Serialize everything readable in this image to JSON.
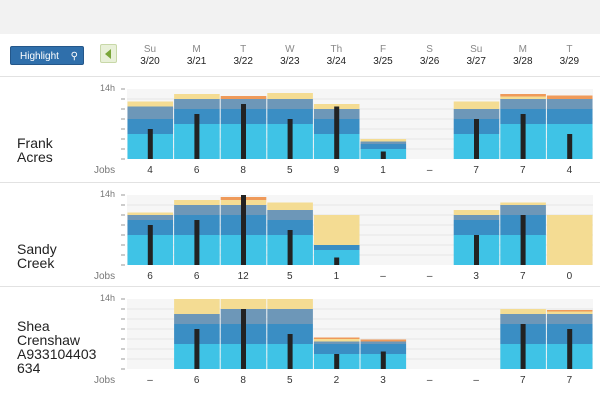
{
  "toolbar": {
    "highlight_label": "Highlight",
    "search_icon": "search-icon",
    "prev_icon": "chevron-left-icon"
  },
  "days": [
    {
      "dow": "Su",
      "date": "3/20"
    },
    {
      "dow": "M",
      "date": "3/21"
    },
    {
      "dow": "T",
      "date": "3/22"
    },
    {
      "dow": "W",
      "date": "3/23"
    },
    {
      "dow": "Th",
      "date": "3/24"
    },
    {
      "dow": "F",
      "date": "3/25"
    },
    {
      "dow": "S",
      "date": "3/26"
    },
    {
      "dow": "Su",
      "date": "3/27"
    },
    {
      "dow": "M",
      "date": "3/28"
    },
    {
      "dow": "T",
      "date": "3/29"
    }
  ],
  "y_max_label": "14h",
  "jobs_label": "Jobs",
  "colors": {
    "cyan": "#3fc3e6",
    "blue": "#3a8ec4",
    "slate": "#6d97b8",
    "yellow": "#f4dc93",
    "orange": "#ef9a5a",
    "bar": "#222222"
  },
  "panels": [
    {
      "name": "Frank\nAcres",
      "jobs": [
        "4",
        "6",
        "8",
        "5",
        "9",
        "1",
        "–",
        "7",
        "7",
        "4"
      ],
      "stacks": [
        {
          "cyan": 5,
          "blue": 3,
          "slate": 2.5,
          "yellow": 1,
          "orange": 0,
          "bar": 6
        },
        {
          "cyan": 7,
          "blue": 3,
          "slate": 2,
          "yellow": 1,
          "orange": 0,
          "bar": 9
        },
        {
          "cyan": 7,
          "blue": 3,
          "slate": 2,
          "yellow": 0,
          "orange": 0.6,
          "bar": 11
        },
        {
          "cyan": 7,
          "blue": 3,
          "slate": 2,
          "yellow": 1.2,
          "orange": 0,
          "bar": 8
        },
        {
          "cyan": 5,
          "blue": 3,
          "slate": 2,
          "yellow": 1,
          "orange": 0,
          "bar": 10.5
        },
        {
          "cyan": 2,
          "blue": 1,
          "slate": 0.5,
          "yellow": 0.5,
          "orange": 0,
          "bar": 1.5
        },
        null,
        {
          "cyan": 5,
          "blue": 3,
          "slate": 2,
          "yellow": 1.5,
          "orange": 0,
          "bar": 8
        },
        {
          "cyan": 7,
          "blue": 3,
          "slate": 2,
          "yellow": 0.5,
          "orange": 0.5,
          "bar": 9
        },
        {
          "cyan": 7,
          "blue": 3,
          "slate": 2,
          "yellow": 0,
          "orange": 0.7,
          "bar": 5
        }
      ]
    },
    {
      "name": "Sandy\nCreek",
      "jobs": [
        "6",
        "6",
        "12",
        "5",
        "1",
        "–",
        "–",
        "3",
        "7",
        "0"
      ],
      "stacks": [
        {
          "cyan": 6,
          "blue": 3,
          "slate": 1,
          "yellow": 0.5,
          "orange": 0,
          "bar": 8
        },
        {
          "cyan": 6,
          "blue": 4,
          "slate": 2,
          "yellow": 1,
          "orange": 0,
          "bar": 9
        },
        {
          "cyan": 6,
          "blue": 4,
          "slate": 2,
          "yellow": 1,
          "orange": 0.6,
          "bar": 14
        },
        {
          "cyan": 6,
          "blue": 3,
          "slate": 2,
          "yellow": 1.5,
          "orange": 0,
          "bar": 7
        },
        {
          "cyan": 3,
          "blue": 1,
          "slate": 0,
          "yellow": 6,
          "orange": 0,
          "bar": 1.5
        },
        null,
        null,
        {
          "cyan": 6,
          "blue": 3,
          "slate": 1,
          "yellow": 1,
          "orange": 0,
          "bar": 6
        },
        {
          "cyan": 6,
          "blue": 4,
          "slate": 2,
          "yellow": 0.5,
          "orange": 0,
          "bar": 10
        },
        {
          "cyan": 0,
          "blue": 0,
          "slate": 0,
          "yellow": 10,
          "orange": 0,
          "bar": 0
        }
      ]
    },
    {
      "name": "Shea\nCrenshaw\nA933104403\n634",
      "jobs": [
        "–",
        "6",
        "8",
        "5",
        "2",
        "3",
        "–",
        "–",
        "7",
        "7"
      ],
      "stacks": [
        null,
        {
          "cyan": 5,
          "blue": 4,
          "slate": 2,
          "yellow": 3,
          "orange": 0,
          "bar": 8
        },
        {
          "cyan": 5,
          "blue": 4,
          "slate": 3,
          "yellow": 2,
          "orange": 0,
          "bar": 12
        },
        {
          "cyan": 5,
          "blue": 4,
          "slate": 3,
          "yellow": 2,
          "orange": 0,
          "bar": 7
        },
        {
          "cyan": 3,
          "blue": 2,
          "slate": 0.5,
          "yellow": 0.5,
          "orange": 0.3,
          "bar": 3
        },
        {
          "cyan": 3,
          "blue": 2,
          "slate": 0.5,
          "yellow": 0,
          "orange": 0.4,
          "bar": 3.5
        },
        null,
        null,
        {
          "cyan": 5,
          "blue": 4,
          "slate": 2,
          "yellow": 1,
          "orange": 0,
          "bar": 9
        },
        {
          "cyan": 5,
          "blue": 4,
          "slate": 2,
          "yellow": 0.5,
          "orange": 0.3,
          "bar": 8
        }
      ]
    }
  ]
}
